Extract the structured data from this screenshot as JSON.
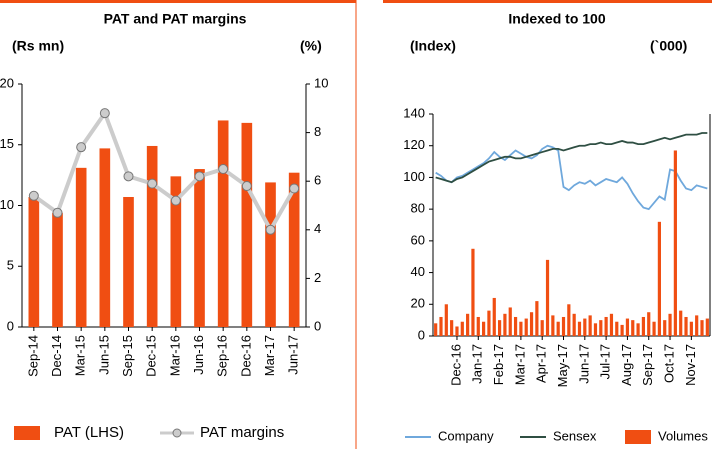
{
  "chart_data": [
    {
      "type": "combo",
      "title": "PAT and PAT margins",
      "y_label": "(Rs mn)",
      "y2_label": "(%)",
      "categories": [
        "Sep-14",
        "Dec-14",
        "Mar-15",
        "Jun-15",
        "Sep-15",
        "Dec-15",
        "Mar-16",
        "Jun-16",
        "Sep-16",
        "Dec-16",
        "Mar-17",
        "Jun-17"
      ],
      "ylim": [
        0,
        20
      ],
      "yticks": [
        0,
        5,
        10,
        15,
        20
      ],
      "y2lim": [
        0,
        10
      ],
      "y2ticks": [
        0,
        2,
        4,
        6,
        8,
        10
      ],
      "series": [
        {
          "name": "PAT (LHS)",
          "type": "bar",
          "color": "#f04e12",
          "values": [
            10.7,
            9.4,
            13.1,
            14.7,
            10.7,
            14.9,
            12.4,
            13.0,
            17.0,
            16.8,
            11.9,
            12.7
          ]
        },
        {
          "name": "PAT margins",
          "type": "line",
          "axis": "y2",
          "color": "#cccccc",
          "values": [
            5.4,
            4.7,
            7.4,
            8.8,
            6.2,
            5.9,
            5.2,
            6.2,
            6.5,
            5.8,
            4.0,
            5.7
          ]
        }
      ]
    },
    {
      "type": "combo",
      "title": "Indexed to 100",
      "y_label": "(Index)",
      "y2_label": "(`000)",
      "x": [
        null,
        null,
        null,
        null,
        "Dec-16",
        null,
        null,
        null,
        "Jan-17",
        null,
        null,
        null,
        "Feb-17",
        null,
        null,
        null,
        "Mar-17",
        null,
        null,
        null,
        "Apr-17",
        null,
        null,
        null,
        "May-17",
        null,
        null,
        null,
        "Jun-17",
        null,
        null,
        null,
        "Jul-17",
        null,
        null,
        null,
        "Aug-17",
        null,
        null,
        null,
        "Sep-17",
        null,
        null,
        null,
        "Oct-17",
        null,
        null,
        null,
        "Nov-17",
        null,
        null,
        null
      ],
      "ylim": [
        0,
        140
      ],
      "yticks": [
        0,
        20,
        40,
        60,
        80,
        100,
        120,
        140
      ],
      "series": [
        {
          "name": "Company",
          "type": "line",
          "color": "#6fa8dc",
          "values": [
            103,
            101,
            98,
            97,
            100,
            101,
            103,
            105,
            107,
            109,
            112,
            116,
            113,
            111,
            114,
            117,
            115,
            113,
            112,
            114,
            118,
            120,
            119,
            117,
            94,
            92,
            95,
            97,
            96,
            98,
            95,
            97,
            99,
            98,
            97,
            100,
            96,
            90,
            85,
            81,
            80,
            84,
            88,
            86,
            105,
            104,
            98,
            93,
            92,
            95,
            94,
            93
          ]
        },
        {
          "name": "Sensex",
          "type": "line",
          "color": "#2f4f43",
          "values": [
            100,
            99,
            98,
            97,
            99,
            100,
            102,
            104,
            106,
            108,
            110,
            111,
            112,
            113,
            113,
            112,
            112,
            113,
            114,
            115,
            116,
            117,
            118,
            118,
            117,
            118,
            119,
            120,
            120,
            121,
            121,
            122,
            121,
            121,
            122,
            123,
            122,
            122,
            121,
            121,
            122,
            123,
            124,
            125,
            124,
            125,
            126,
            127,
            127,
            127,
            128,
            128
          ]
        },
        {
          "name": "Volumes",
          "type": "bar",
          "color": "#f04e12",
          "values": [
            8,
            12,
            20,
            10,
            6,
            9,
            14,
            55,
            12,
            9,
            16,
            24,
            10,
            14,
            18,
            12,
            9,
            11,
            15,
            22,
            10,
            48,
            13,
            9,
            12,
            20,
            14,
            9,
            11,
            13,
            8,
            10,
            12,
            14,
            9,
            7,
            11,
            10,
            8,
            12,
            15,
            9,
            72,
            10,
            14,
            117,
            16,
            12,
            9,
            13,
            10,
            11
          ]
        }
      ]
    }
  ]
}
